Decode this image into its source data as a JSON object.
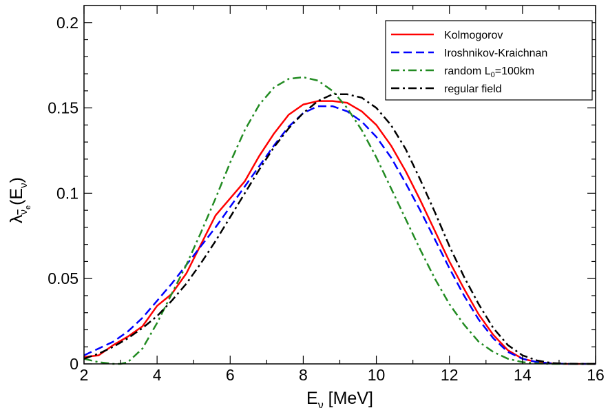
{
  "chart_data": {
    "type": "line",
    "xlim": [
      2,
      16
    ],
    "ylim": [
      0,
      0.21
    ],
    "x_ticks": [
      2,
      4,
      6,
      8,
      10,
      12,
      14,
      16
    ],
    "x_tick_labels": [
      "2",
      "4",
      "6",
      "8",
      "10",
      "12",
      "14",
      "16"
    ],
    "y_ticks": [
      0,
      0.05,
      0.1,
      0.15,
      0.2
    ],
    "y_tick_labels": [
      "0",
      "0.05",
      "0.1",
      "0.15",
      "0.2"
    ],
    "xlabel": {
      "base": "E",
      "sub": "ν",
      "suffix": " [MeV]"
    },
    "ylabel": {
      "lambda": "λ",
      "sub_nu": "ν",
      "sub_e": "e",
      "open": "(E",
      "sub_e2": "ν",
      "close": ")"
    },
    "grid": false,
    "legend_position": "top-right",
    "series": [
      {
        "name": "Kolmogorov",
        "color": "#ff0000",
        "dash": "solid",
        "x": [
          2.0,
          2.4,
          2.8,
          3.2,
          3.6,
          4.0,
          4.4,
          4.8,
          5.2,
          5.6,
          6.0,
          6.4,
          6.8,
          7.2,
          7.6,
          8.0,
          8.4,
          8.8,
          9.2,
          9.6,
          10.0,
          10.4,
          10.8,
          11.2,
          11.6,
          12.0,
          12.4,
          12.8,
          13.2,
          13.6,
          14.0,
          14.4,
          14.8,
          15.2,
          15.6,
          16.0
        ],
        "y": [
          0.004,
          0.005,
          0.011,
          0.016,
          0.022,
          0.034,
          0.041,
          0.053,
          0.07,
          0.087,
          0.097,
          0.107,
          0.122,
          0.135,
          0.146,
          0.152,
          0.154,
          0.154,
          0.153,
          0.148,
          0.14,
          0.128,
          0.113,
          0.096,
          0.078,
          0.06,
          0.044,
          0.029,
          0.017,
          0.008,
          0.003,
          0.001,
          0.0003,
          0.0,
          0.0,
          0.0
        ]
      },
      {
        "name": "Iroshnikov-Kraichnan",
        "color": "#0000ff",
        "dash": "dashed",
        "x": [
          2.0,
          2.4,
          2.8,
          3.2,
          3.6,
          4.0,
          4.4,
          4.8,
          5.2,
          5.6,
          6.0,
          6.4,
          6.8,
          7.2,
          7.6,
          8.0,
          8.4,
          8.8,
          9.2,
          9.6,
          10.0,
          10.4,
          10.8,
          11.2,
          11.6,
          12.0,
          12.4,
          12.8,
          13.2,
          13.6,
          14.0,
          14.4,
          14.8,
          15.2,
          15.6,
          16.0
        ],
        "y": [
          0.005,
          0.009,
          0.013,
          0.019,
          0.027,
          0.037,
          0.047,
          0.058,
          0.069,
          0.08,
          0.092,
          0.104,
          0.116,
          0.128,
          0.139,
          0.147,
          0.151,
          0.151,
          0.148,
          0.142,
          0.133,
          0.121,
          0.106,
          0.09,
          0.073,
          0.056,
          0.04,
          0.026,
          0.015,
          0.007,
          0.003,
          0.001,
          0.0003,
          0.0,
          0.0,
          0.0
        ]
      },
      {
        "name": "random L0=100km",
        "name_parts": {
          "base": "random L",
          "sub": "0",
          "suffix": "=100km"
        },
        "color": "#228b22",
        "dash": "dash-dot",
        "x": [
          2.0,
          2.4,
          2.8,
          3.0,
          3.2,
          3.6,
          4.0,
          4.4,
          4.8,
          5.2,
          5.6,
          6.0,
          6.4,
          6.8,
          7.2,
          7.6,
          8.0,
          8.4,
          8.8,
          9.2,
          9.6,
          10.0,
          10.4,
          10.8,
          11.2,
          11.6,
          12.0,
          12.4,
          12.8,
          13.2,
          13.6,
          14.0,
          14.4,
          14.8,
          15.2,
          15.6,
          16.0
        ],
        "y": [
          0.003,
          0.001,
          0.0,
          0.0,
          0.001,
          0.009,
          0.024,
          0.041,
          0.058,
          0.077,
          0.097,
          0.118,
          0.137,
          0.152,
          0.162,
          0.167,
          0.168,
          0.166,
          0.16,
          0.15,
          0.137,
          0.121,
          0.103,
          0.085,
          0.067,
          0.05,
          0.035,
          0.023,
          0.013,
          0.007,
          0.003,
          0.001,
          0.0003,
          0.0,
          0.0,
          0.0,
          0.0
        ]
      },
      {
        "name": "regular field",
        "color": "#000000",
        "dash": "dash-dot",
        "x": [
          2.0,
          2.4,
          2.8,
          3.2,
          3.6,
          4.0,
          4.4,
          4.8,
          5.2,
          5.6,
          6.0,
          6.4,
          6.8,
          7.2,
          7.6,
          8.0,
          8.4,
          8.8,
          9.2,
          9.6,
          10.0,
          10.4,
          10.8,
          11.2,
          11.6,
          12.0,
          12.4,
          12.8,
          13.2,
          13.6,
          14.0,
          14.4,
          14.8,
          15.2,
          15.6,
          16.0
        ],
        "y": [
          0.003,
          0.006,
          0.01,
          0.015,
          0.021,
          0.028,
          0.037,
          0.047,
          0.059,
          0.072,
          0.086,
          0.1,
          0.114,
          0.127,
          0.138,
          0.147,
          0.154,
          0.158,
          0.158,
          0.156,
          0.15,
          0.14,
          0.126,
          0.108,
          0.089,
          0.069,
          0.051,
          0.035,
          0.021,
          0.011,
          0.005,
          0.002,
          0.0005,
          0.0001,
          0.0,
          0.0
        ]
      }
    ]
  }
}
